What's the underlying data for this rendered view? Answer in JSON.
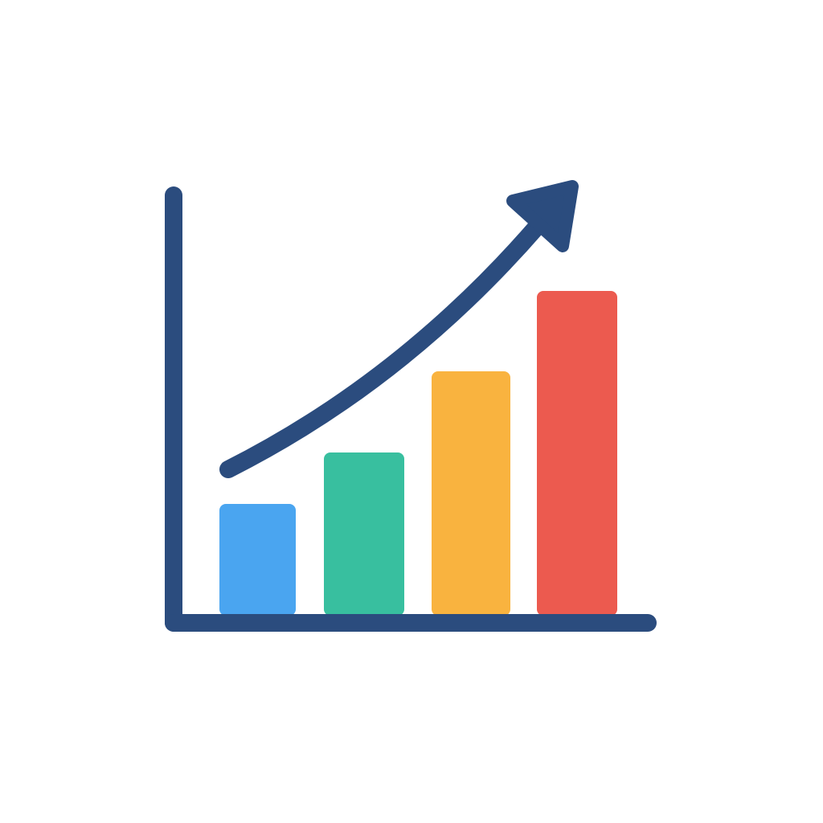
{
  "icon": {
    "bar_colors": [
      "#4aa5f0",
      "#38bf9f",
      "#f9b33f",
      "#ec5a4f"
    ],
    "line_color": "#2b4c7e"
  }
}
